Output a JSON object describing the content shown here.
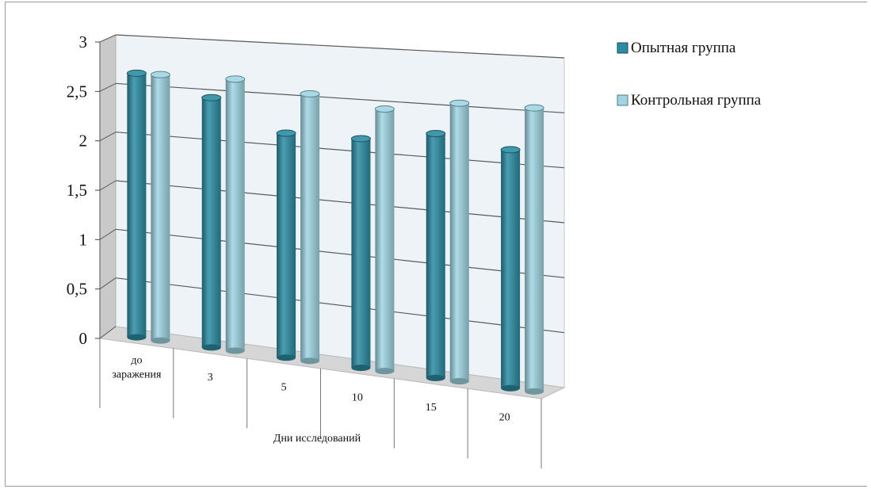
{
  "chart_data": {
    "type": "bar",
    "title": "",
    "xlabel": "Дни исследований",
    "ylabel": "",
    "categories": [
      "до заражения",
      "3",
      "5",
      "10",
      "15",
      "20"
    ],
    "series": [
      {
        "name": "Опытная группа",
        "values": [
          2.7,
          2.5,
          2.2,
          2.2,
          2.3,
          2.2
        ],
        "color": "#2B8CA3"
      },
      {
        "name": "Контрольная группа",
        "values": [
          2.7,
          2.7,
          2.6,
          2.5,
          2.6,
          2.6
        ],
        "color": "#9FD5E3"
      }
    ],
    "ylim": [
      0,
      3
    ],
    "yticks": [
      "0",
      "0,5",
      "1",
      "1,5",
      "2",
      "2,5",
      "3"
    ],
    "grid": true,
    "legend": "right",
    "style": "3d-cylinder"
  }
}
